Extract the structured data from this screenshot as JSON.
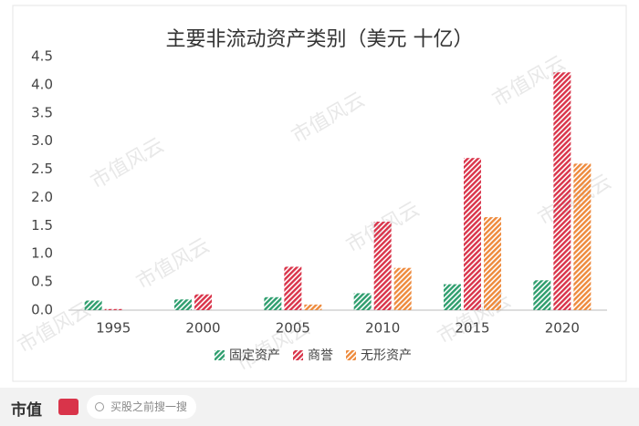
{
  "chart_data": {
    "type": "bar",
    "title": "主要非流动资产类别（美元 十亿）",
    "categories": [
      "1995",
      "2000",
      "2005",
      "2010",
      "2015",
      "2020"
    ],
    "series": [
      {
        "name": "固定资产",
        "color": "#2e9e6e",
        "values": [
          0.17,
          0.19,
          0.23,
          0.3,
          0.46,
          0.53
        ]
      },
      {
        "name": "商誉",
        "color": "#d9344a",
        "values": [
          0.02,
          0.28,
          0.77,
          1.57,
          2.7,
          4.22
        ]
      },
      {
        "name": "无形资产",
        "color": "#ee8a3c",
        "values": [
          0,
          0,
          0.1,
          0.75,
          1.65,
          2.6
        ]
      }
    ],
    "ylim": [
      0,
      4.5
    ],
    "yticks": [
      {
        "value": 0,
        "label": "0.0"
      },
      0.5,
      {
        "value": 1,
        "label": "1.0"
      },
      1.5,
      {
        "value": 2,
        "label": "2.0"
      },
      2.5,
      {
        "value": 3,
        "label": "3.0"
      },
      3.5,
      {
        "value": 4,
        "label": "4.0"
      },
      4.5
    ],
    "grid": false,
    "legend": "bottom"
  },
  "watermark": "市值风云",
  "footer": {
    "logo": "市值",
    "search": "买股之前搜一搜"
  }
}
